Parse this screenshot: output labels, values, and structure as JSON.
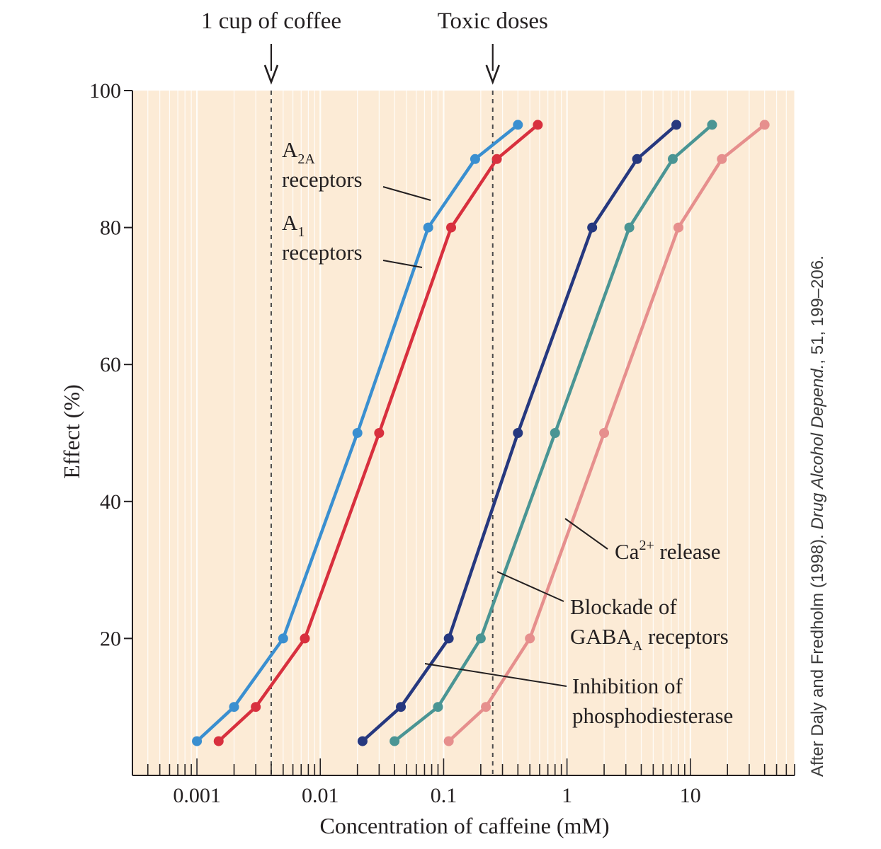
{
  "chart_data": {
    "type": "line",
    "title": "",
    "xlabel": "Concentration of caffeine (mM)",
    "ylabel": "Effect (%)",
    "xscale": "log",
    "xlim": [
      0.0003,
      70
    ],
    "ylim": [
      0,
      100
    ],
    "x_ticks": [
      {
        "value": 0.001,
        "label": "0.001"
      },
      {
        "value": 0.01,
        "label": "0.01"
      },
      {
        "value": 0.1,
        "label": "0.1"
      },
      {
        "value": 1,
        "label": "1"
      },
      {
        "value": 10,
        "label": "10"
      }
    ],
    "y_ticks": [
      {
        "value": 20,
        "label": "20"
      },
      {
        "value": 40,
        "label": "40"
      },
      {
        "value": 60,
        "label": "60"
      },
      {
        "value": 80,
        "label": "80"
      },
      {
        "value": 100,
        "label": "100"
      }
    ],
    "background_color": "#fcebd6",
    "grid_color": "#ffffff",
    "series": [
      {
        "key": "a2a",
        "color": "#3a8fd0",
        "label_lines": [
          {
            "text": "A",
            "sub": "2A"
          },
          {
            "text": "receptors"
          }
        ],
        "points": [
          [
            0.001,
            5
          ],
          [
            0.002,
            10
          ],
          [
            0.005,
            20
          ],
          [
            0.02,
            50
          ],
          [
            0.075,
            80
          ],
          [
            0.18,
            90
          ],
          [
            0.4,
            95
          ]
        ]
      },
      {
        "key": "a1",
        "color": "#d8303e",
        "label_lines": [
          {
            "text": "A",
            "sub": "1"
          },
          {
            "text": "receptors"
          }
        ],
        "points": [
          [
            0.0015,
            5
          ],
          [
            0.003,
            10
          ],
          [
            0.0075,
            20
          ],
          [
            0.03,
            50
          ],
          [
            0.115,
            80
          ],
          [
            0.27,
            90
          ],
          [
            0.58,
            95
          ]
        ]
      },
      {
        "key": "pde",
        "color": "#26387f",
        "label_lines": [
          {
            "text": "Inhibition of"
          },
          {
            "text": "phosphodiesterase"
          }
        ],
        "points": [
          [
            0.022,
            5
          ],
          [
            0.045,
            10
          ],
          [
            0.11,
            20
          ],
          [
            0.4,
            50
          ],
          [
            1.6,
            80
          ],
          [
            3.7,
            90
          ],
          [
            7.7,
            95
          ]
        ]
      },
      {
        "key": "gaba",
        "color": "#4a9594",
        "label_lines": [
          {
            "text": "Blockade of"
          },
          {
            "text": "GABA",
            "sub": "A",
            "after": " receptors"
          }
        ],
        "points": [
          [
            0.04,
            5
          ],
          [
            0.09,
            10
          ],
          [
            0.2,
            20
          ],
          [
            0.8,
            50
          ],
          [
            3.2,
            80
          ],
          [
            7.2,
            90
          ],
          [
            15,
            95
          ]
        ]
      },
      {
        "key": "ca",
        "color": "#e68f8d",
        "label_lines": [
          {
            "text": "Ca",
            "sup": "2+",
            "after": " release"
          }
        ],
        "points": [
          [
            0.11,
            5
          ],
          [
            0.22,
            10
          ],
          [
            0.5,
            20
          ],
          [
            2,
            50
          ],
          [
            8,
            80
          ],
          [
            18,
            90
          ],
          [
            40,
            95
          ]
        ]
      }
    ],
    "annotations": [
      {
        "key": "coffee",
        "text": "1 cup of coffee",
        "x": 0.004
      },
      {
        "key": "toxic",
        "text": "Toxic doses",
        "x": 0.25
      }
    ]
  },
  "credit": {
    "prefix": "After Daly and Fredholm (1998). ",
    "journal": "Drug Alcohol Depend.",
    "suffix": ", 51, 199–206."
  }
}
